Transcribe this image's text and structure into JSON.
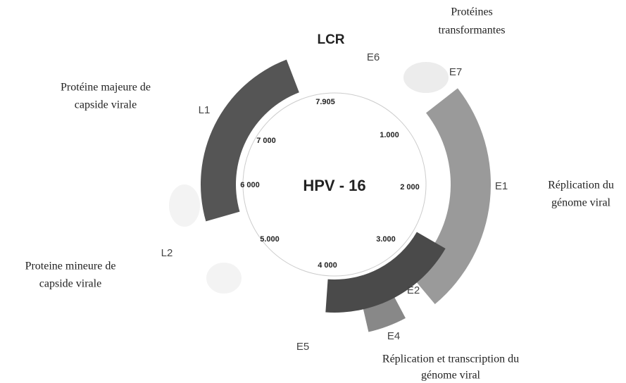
{
  "center_label": "HPV - 16",
  "region": "LCR",
  "genes": [
    "E6",
    "E7",
    "E1",
    "E2",
    "E4",
    "E5",
    "L2",
    "L1"
  ],
  "positions": [
    "7.905",
    "1.000",
    "2 000",
    "3.000",
    "4 000",
    "5.000",
    "6 000",
    "7 000"
  ],
  "annotations": [
    {
      "lines": [
        "Protéines",
        "transformantes"
      ]
    },
    {
      "lines": [
        "Protéine majeure de",
        "capside virale"
      ]
    },
    {
      "lines": [
        "Réplication du",
        "génome viral"
      ]
    },
    {
      "lines": [
        "Proteine mineure de",
        "capside virale"
      ]
    },
    {
      "lines": [
        "Réplication et transcription du",
        "génome viral"
      ]
    }
  ]
}
